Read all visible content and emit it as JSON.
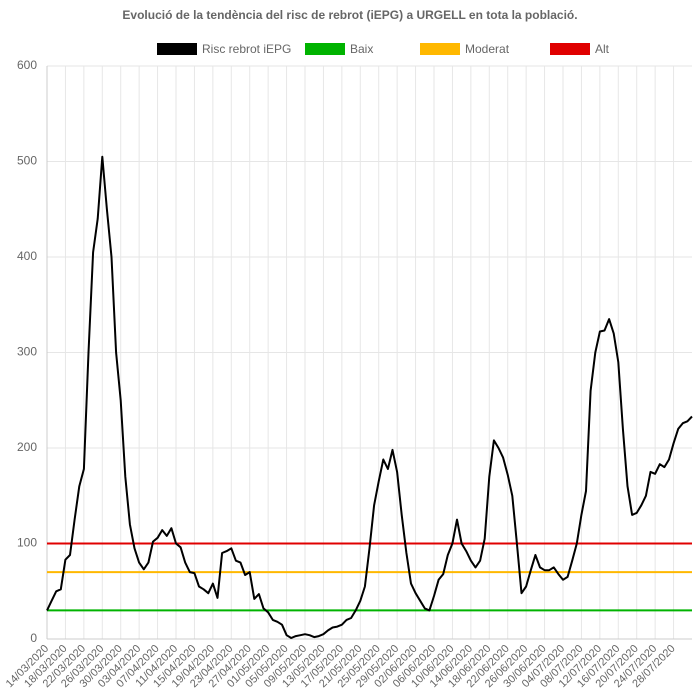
{
  "chart_data": {
    "type": "line",
    "title": "Evolució de la tendència del risc de rebrot (iEPG) a URGELL en tota la població.",
    "categories": [
      "14/03/2020",
      null,
      null,
      null,
      "18/03/2020",
      null,
      null,
      null,
      "22/03/2020",
      null,
      null,
      null,
      "26/03/2020",
      null,
      null,
      null,
      "30/03/2020",
      null,
      null,
      null,
      "03/04/2020",
      null,
      null,
      null,
      "07/04/2020",
      null,
      null,
      null,
      "11/04/2020",
      null,
      null,
      null,
      "15/04/2020",
      null,
      null,
      null,
      "19/04/2020",
      null,
      null,
      null,
      "23/04/2020",
      null,
      null,
      null,
      "27/04/2020",
      null,
      null,
      null,
      "01/05/2020",
      null,
      null,
      null,
      "05/05/2020",
      null,
      null,
      null,
      "09/05/2020",
      null,
      null,
      null,
      "13/05/2020",
      null,
      null,
      null,
      "17/05/2020",
      null,
      null,
      null,
      "21/05/2020",
      null,
      null,
      null,
      "25/05/2020",
      null,
      null,
      null,
      "29/05/2020",
      null,
      null,
      null,
      "02/06/2020",
      null,
      null,
      null,
      "06/06/2020",
      null,
      null,
      null,
      "10/06/2020",
      null,
      null,
      null,
      "14/06/2020",
      null,
      null,
      null,
      "18/06/2020",
      null,
      null,
      null,
      "22/06/2020",
      null,
      null,
      null,
      "26/06/2020",
      null,
      null,
      null,
      "30/06/2020",
      null,
      null,
      null,
      "04/07/2020",
      null,
      null,
      null,
      "08/07/2020",
      null,
      null,
      null,
      "12/07/2020",
      null,
      null,
      null,
      "16/07/2020",
      null,
      null,
      null,
      "20/07/2020",
      null,
      null,
      null,
      "24/07/2020",
      null,
      null,
      null,
      "28/07/2020",
      null,
      null,
      null,
      null
    ],
    "series": [
      {
        "name": "Risc rebrot iEPG",
        "color": "#000000",
        "values": [
          30,
          40,
          50,
          52,
          83,
          88,
          125,
          160,
          178,
          300,
          405,
          440,
          505,
          450,
          400,
          300,
          250,
          170,
          120,
          95,
          80,
          73,
          80,
          102,
          106,
          114,
          108,
          116,
          100,
          96,
          80,
          70,
          69,
          55,
          52,
          48,
          58,
          43,
          90,
          92,
          95,
          82,
          80,
          67,
          70,
          42,
          47,
          32,
          28,
          20,
          18,
          15,
          4,
          1,
          3,
          4,
          5,
          4,
          2,
          3,
          5,
          9,
          12,
          13,
          15,
          20,
          22,
          30,
          40,
          55,
          95,
          140,
          165,
          188,
          178,
          198,
          175,
          130,
          90,
          58,
          48,
          40,
          32,
          30,
          45,
          62,
          68,
          88,
          100,
          125,
          100,
          92,
          82,
          75,
          82,
          105,
          170,
          208,
          200,
          190,
          172,
          150,
          100,
          48,
          55,
          72,
          88,
          75,
          72,
          72,
          75,
          68,
          62,
          65,
          82,
          100,
          130,
          155,
          260,
          300,
          322,
          323,
          335,
          320,
          290,
          220,
          160,
          130,
          132,
          140,
          150,
          175,
          173,
          183,
          180,
          188,
          205,
          220,
          226,
          228,
          233
        ]
      }
    ],
    "reference_lines": [
      {
        "name": "Baix",
        "color": "#00b300",
        "value": 30
      },
      {
        "name": "Moderat",
        "color": "#ffb800",
        "value": 70
      },
      {
        "name": "Alt",
        "color": "#e00000",
        "value": 100
      }
    ],
    "ylim": [
      0,
      600
    ],
    "yticks": [
      0,
      100,
      200,
      300,
      400,
      500,
      600
    ],
    "grid": true
  }
}
